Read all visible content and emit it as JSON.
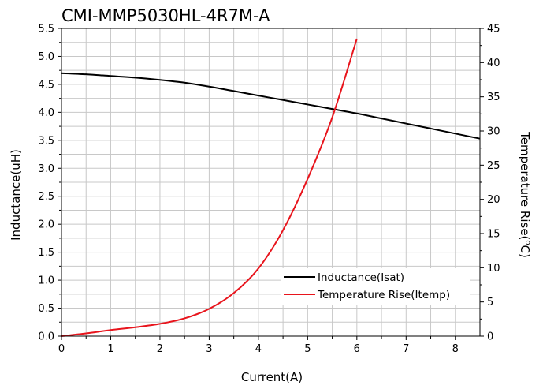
{
  "chart_data": {
    "type": "line",
    "title": "CMI-MMP5030HL-4R7M-A",
    "xlabel": "Current(A)",
    "ylabel_left": "Inductance(uH)",
    "ylabel_right": "Temperature Rise(",
    "ylabel_right_sup": "o",
    "ylabel_right_unit": "C)",
    "xlim": [
      0,
      8.5
    ],
    "ylim_left": [
      0,
      5.5
    ],
    "ylim_right": [
      0,
      45
    ],
    "xticks": [
      "0",
      "1",
      "2",
      "3",
      "4",
      "5",
      "6",
      "7",
      "8"
    ],
    "yticks_left": [
      "0.0",
      "0.5",
      "1.0",
      "1.5",
      "2.0",
      "2.5",
      "3.0",
      "3.5",
      "4.0",
      "4.5",
      "5.0",
      "5.5"
    ],
    "yticks_right": [
      "0",
      "5",
      "10",
      "15",
      "20",
      "25",
      "30",
      "35",
      "40",
      "45"
    ],
    "grid": true,
    "legend_position": "bottom-right",
    "series": [
      {
        "name": "Inductance(Isat)",
        "axis": "left",
        "color": "#000000",
        "x": [
          0,
          0.5,
          1,
          1.5,
          2,
          2.5,
          3,
          3.5,
          4,
          4.5,
          5,
          5.5,
          6,
          6.5,
          7,
          7.5,
          8,
          8.5
        ],
        "y": [
          4.7,
          4.68,
          4.65,
          4.62,
          4.58,
          4.53,
          4.46,
          4.38,
          4.3,
          4.22,
          4.14,
          4.06,
          3.98,
          3.89,
          3.8,
          3.71,
          3.62,
          3.53
        ]
      },
      {
        "name": "Temperature Rise(Itemp)",
        "axis": "right",
        "color": "#e8141c",
        "x": [
          0,
          0.5,
          1,
          1.5,
          2,
          2.5,
          3,
          3.5,
          4,
          4.5,
          5,
          5.5,
          6
        ],
        "y": [
          0,
          0.4,
          0.9,
          1.3,
          1.8,
          2.6,
          4.0,
          6.3,
          9.9,
          15.5,
          23.0,
          32.0,
          43.5
        ]
      }
    ]
  }
}
